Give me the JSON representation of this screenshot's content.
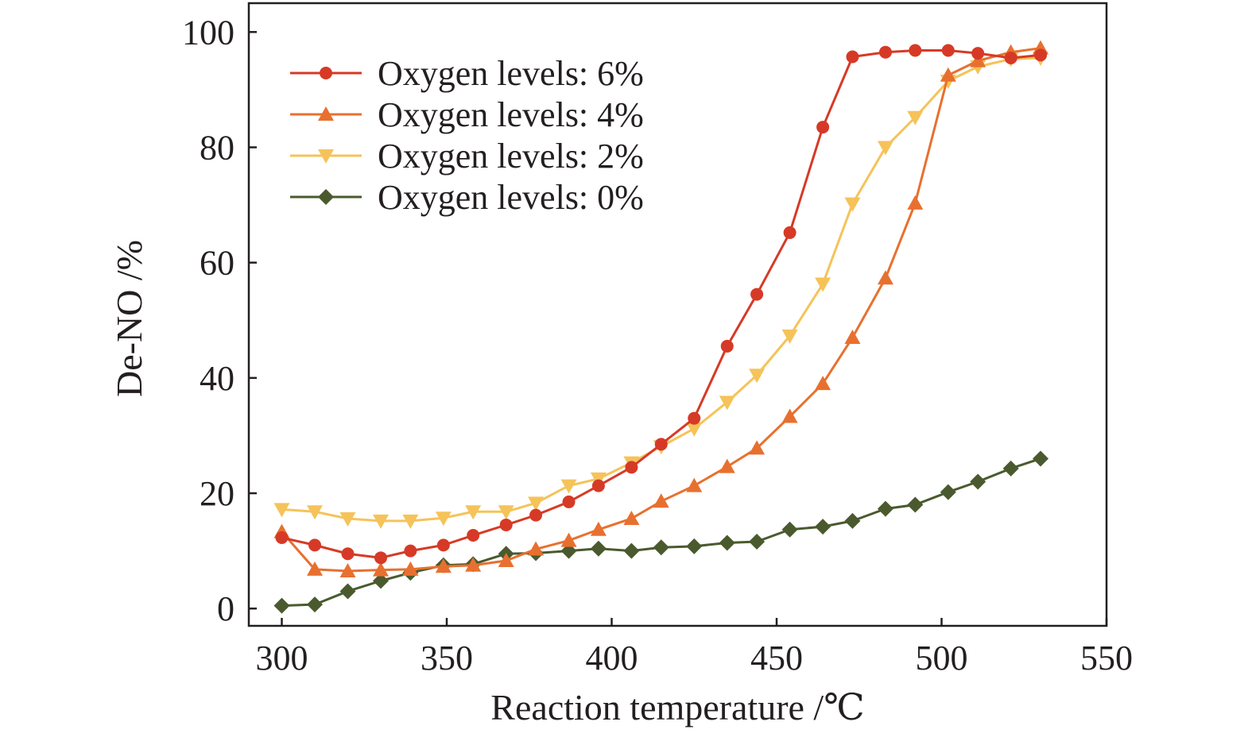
{
  "chart_data": {
    "type": "line",
    "title": "",
    "xlabel": "Reaction temperature /℃",
    "ylabel": "De-NO /%",
    "xlim": [
      290,
      550
    ],
    "ylim": [
      -3,
      105
    ],
    "xticks": [
      300,
      350,
      400,
      450,
      500,
      550
    ],
    "yticks": [
      0,
      20,
      40,
      60,
      80,
      100
    ],
    "grid": false,
    "legend_position": "top-left",
    "x": [
      300,
      310,
      320,
      330,
      339,
      349,
      358,
      368,
      377,
      387,
      396,
      406,
      415,
      425,
      435,
      444,
      454,
      464,
      473,
      483,
      492,
      502,
      511,
      521,
      530
    ],
    "series": [
      {
        "name": "Oxygen levels: 6%",
        "color": "#d63a26",
        "marker": "circle",
        "values": [
          12.3,
          11.0,
          9.5,
          8.8,
          10.0,
          11.0,
          12.7,
          14.5,
          16.2,
          18.5,
          21.3,
          24.5,
          28.5,
          33.0,
          45.5,
          54.5,
          65.2,
          83.5,
          95.7,
          96.5,
          96.8,
          96.8,
          96.3,
          95.5,
          96.0
        ]
      },
      {
        "name": "Oxygen levels: 4%",
        "color": "#e8702f",
        "marker": "triangle-up",
        "values": [
          13.3,
          6.8,
          6.5,
          6.7,
          6.8,
          7.3,
          7.5,
          8.3,
          10.3,
          11.8,
          13.7,
          15.6,
          18.6,
          21.3,
          24.6,
          27.8,
          33.3,
          39.0,
          47.0,
          57.3,
          70.3,
          92.5,
          95.0,
          96.5,
          97.2
        ]
      },
      {
        "name": "Oxygen levels: 2%",
        "color": "#f5c359",
        "marker": "triangle-down",
        "values": [
          17.2,
          16.8,
          15.6,
          15.2,
          15.2,
          15.7,
          16.8,
          16.8,
          18.3,
          21.3,
          22.5,
          25.3,
          28.1,
          31.2,
          35.8,
          40.5,
          47.3,
          56.3,
          70.2,
          80.0,
          85.2,
          91.5,
          94.0,
          95.3,
          95.5
        ]
      },
      {
        "name": "Oxygen levels: 0%",
        "color": "#4a5a2e",
        "marker": "diamond",
        "values": [
          0.5,
          0.7,
          3.0,
          4.8,
          6.2,
          7.5,
          7.7,
          9.5,
          9.6,
          10.0,
          10.4,
          10.0,
          10.6,
          10.8,
          11.4,
          11.6,
          13.7,
          14.2,
          15.2,
          17.3,
          18.0,
          20.2,
          22.0,
          24.3,
          26.0
        ]
      }
    ]
  }
}
